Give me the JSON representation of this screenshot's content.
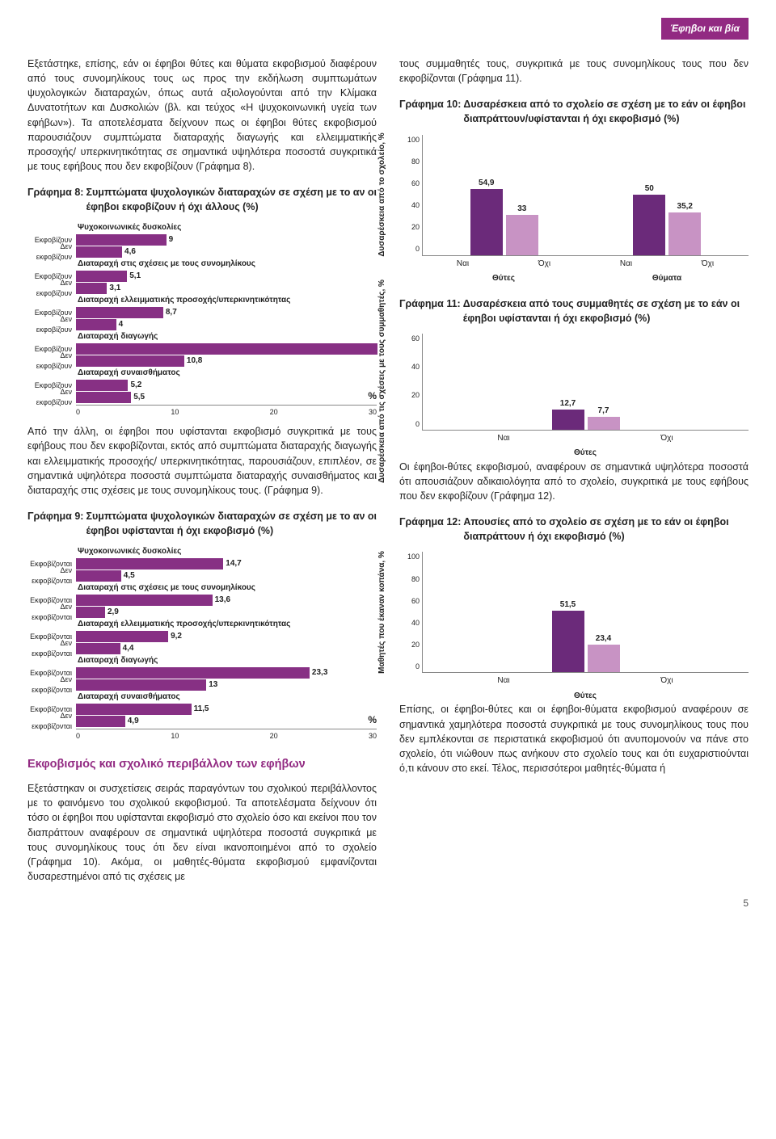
{
  "tab": "Έφηβοι και βία",
  "left": {
    "p1": "Εξετάστηκε, επίσης, εάν οι έφηβοι θύτες και θύματα εκφοβισμού διαφέρουν από τους συνομηλίκους τους ως προς την εκδήλωση συμπτωμάτων ψυχολογικών διαταραχών, όπως αυτά αξιολογούνται από την Κλίμακα Δυνατοτήτων και Δυσκολιών (βλ. και τεύχος «Η ψυχοκοινωνική υγεία των εφήβων»). Τα αποτελέσματα δείχνουν πως οι έφηβοι θύτες εκφοβισμού παρουσιάζουν συμπτώματα διαταραχής διαγωγής και ελλειμματικής προσοχής/ υπερκινητικότητας σε σημαντικά υψηλότερα ποσοστά συγκριτικά με τους εφήβους που δεν εκφοβίζουν (Γράφημα 8).",
    "c8": {
      "num": "Γράφημα 8:",
      "title": "Συμπτώματα ψυχολογικών διαταραχών σε σχέση με το αν οι έφηβοι εκφοβίζουν ή όχι άλλους (%)",
      "xmax": 30,
      "xticks": [
        "0",
        "10",
        "20",
        "30"
      ],
      "lbl_yes": "Εκφοβίζουν",
      "lbl_no": "Δεν εκφοβίζουν",
      "pct": "%",
      "dark": "#873084",
      "groups": [
        {
          "hdr": "Ψυχοκοινωνικές δυσκολίες",
          "yes": 9,
          "no": 4.6,
          "vy": "9",
          "vn": "4,6"
        },
        {
          "hdr": "Διαταραχή στις σχέσεις με τους συνομηλίκους",
          "yes": 5.1,
          "no": 3.1,
          "vy": "5,1",
          "vn": "3,1"
        },
        {
          "hdr": "Διαταραχή ελλειμματικής προσοχής/υπερκινητικότητας",
          "yes": 8.7,
          "no": 4,
          "vy": "8,7",
          "vn": "4"
        },
        {
          "hdr": "Διαταραχή διαγωγής",
          "yes": 30.1,
          "no": 10.8,
          "vy": "30,1",
          "vn": "10,8"
        },
        {
          "hdr": "Διαταραχή συναισθήματος",
          "yes": 5.2,
          "no": 5.5,
          "vy": "5,2",
          "vn": "5,5"
        }
      ]
    },
    "p2": "Από την άλλη, οι έφηβοι που υφίστανται εκφοβισμό συγκριτικά με τους εφήβους που δεν εκφοβίζονται, εκτός από συμπτώματα διαταραχής διαγωγής και ελλειμματικής προσοχής/ υπερκινητικότητας, παρουσιάζουν, επιπλέον, σε σημαντικά υψηλότερα ποσοστά συμπτώματα διαταραχής συναισθήματος και διαταραχής στις σχέσεις με τους συνομηλίκους τους. (Γράφημα 9).",
    "c9": {
      "num": "Γράφημα 9:",
      "title": "Συμπτώματα ψυχολογικών διαταραχών σε σχέση με το αν οι έφηβοι υφίστανται ή όχι εκφοβισμό (%)",
      "xmax": 30,
      "xticks": [
        "0",
        "10",
        "20",
        "30"
      ],
      "lbl_yes": "Εκφοβίζονται",
      "lbl_no": "Δεν εκφοβίζονται",
      "pct": "%",
      "dark": "#873084",
      "groups": [
        {
          "hdr": "Ψυχοκοινωνικές δυσκολίες",
          "yes": 14.7,
          "no": 4.5,
          "vy": "14,7",
          "vn": "4,5"
        },
        {
          "hdr": "Διαταραχή στις σχέσεις με τους συνομηλίκους",
          "yes": 13.6,
          "no": 2.9,
          "vy": "13,6",
          "vn": "2,9"
        },
        {
          "hdr": "Διαταραχή ελλειμματικής προσοχής/υπερκινητικότητας",
          "yes": 9.2,
          "no": 4.4,
          "vy": "9,2",
          "vn": "4,4"
        },
        {
          "hdr": "Διαταραχή διαγωγής",
          "yes": 23.3,
          "no": 13,
          "vy": "23,3",
          "vn": "13"
        },
        {
          "hdr": "Διαταραχή συναισθήματος",
          "yes": 11.5,
          "no": 4.9,
          "vy": "11,5",
          "vn": "4,9"
        }
      ]
    },
    "h2": "Εκφοβισμός και σχολικό περιβάλλον των εφήβων",
    "p3": "Εξετάστηκαν οι συσχετίσεις σειράς παραγόντων του σχολικού περιβάλλοντος με το φαινόμενο του σχολικού εκφοβισμού. Τα αποτελέσματα δείχνουν ότι τόσο οι έφηβοι που υφίστανται εκφοβισμό στο σχολείο όσο και εκείνοι που τον διαπράττουν αναφέρουν σε σημαντικά υψηλότερα ποσοστά συγκριτικά με τους συνομηλίκους τους ότι δεν είναι ικανοποιημένοι από το σχολείο (Γράφημα 10). Ακόμα, οι μαθητές-θύματα εκφοβισμού εμφανίζονται δυσαρεστημένοι από τις σχέσεις με"
  },
  "right": {
    "p1": "τους συμμαθητές τους, συγκριτικά με τους συνομηλίκους τους που δεν εκφοβίζονται (Γράφημα 11).",
    "c10": {
      "num": "Γράφημα 10:",
      "title": "Δυσαρέσκεια από το σχολείο σε σχέση με το εάν οι έφηβοι διαπράττουν/υφίστανται ή όχι εκφοβισμό (%)",
      "ymax": 100,
      "yticks": [
        "100",
        "80",
        "60",
        "40",
        "20",
        "0"
      ],
      "ylabel": "Δυσαρέσκεια από το σχολείο, %",
      "ph": 150,
      "dark": "#6b2a7a",
      "light": "#c893c4",
      "groups": [
        {
          "dark": 54.9,
          "light": 33,
          "vd": "54,9",
          "vl": "33",
          "cats": [
            "Ναι",
            "Όχι"
          ],
          "sc": "Θύτες"
        },
        {
          "dark": 50,
          "light": 35.2,
          "vd": "50",
          "vl": "35,2",
          "cats": [
            "Ναι",
            "Όχι"
          ],
          "sc": "Θύματα"
        }
      ]
    },
    "c11": {
      "num": "Γράφημα 11:",
      "title": "Δυσαρέσκεια από τους συμμαθητές σε σχέση με το εάν οι έφηβοι υφίστανται ή όχι εκφοβισμό (%)",
      "ymax": 60,
      "yticks": [
        "60",
        "40",
        "20",
        "0"
      ],
      "ylabel": "Δυσαρέσκεια από τις σχέσεις με τους συμμαθητές, %",
      "ph": 120,
      "dark": "#6b2a7a",
      "light": "#c893c4",
      "groups": [
        {
          "dark": 12.7,
          "light": 7.7,
          "vd": "12,7",
          "vl": "7,7",
          "cats": [
            "Ναι",
            "Όχι"
          ],
          "sc": "Θύτες"
        }
      ]
    },
    "p2": "Οι έφηβοι-θύτες εκφοβισμού, αναφέρουν σε σημαντικά υψηλότερα ποσοστά ότι απουσιάζουν αδικαιολόγητα από το σχολείο, συγκριτικά με τους εφήβους που δεν εκφοβίζουν (Γράφημα 12).",
    "c12": {
      "num": "Γράφημα 12:",
      "title": "Απουσίες από το σχολείο σε σχέση με το εάν οι έφηβοι διαπράττουν ή όχι εκφοβισμό (%)",
      "ymax": 100,
      "yticks": [
        "100",
        "80",
        "60",
        "40",
        "20",
        "0"
      ],
      "ylabel": "Μαθητές που έκαναν κοπάνα, %",
      "ph": 150,
      "dark": "#6b2a7a",
      "light": "#c893c4",
      "groups": [
        {
          "dark": 51.5,
          "light": 23.4,
          "vd": "51,5",
          "vl": "23,4",
          "cats": [
            "Ναι",
            "Όχι"
          ],
          "sc": "Θύτες"
        }
      ]
    },
    "p3": "Επίσης, οι έφηβοι-θύτες και οι έφηβοι-θύματα εκφοβισμού αναφέρουν σε σημαντικά χαμηλότερα ποσοστά συγκριτικά με τους συνομηλίκους τους που δεν εμπλέκονται σε περιστατικά εκφοβισμού ότι ανυπομονούν να πάνε στο σχολείο, ότι νιώθουν πως ανήκουν στο σχολείο τους και ότι ευχαριστιούνται ό,τι κάνουν στο εκεί. Τέλος, περισσότεροι μαθητές-θύματα ή"
  },
  "pagenum": "5"
}
